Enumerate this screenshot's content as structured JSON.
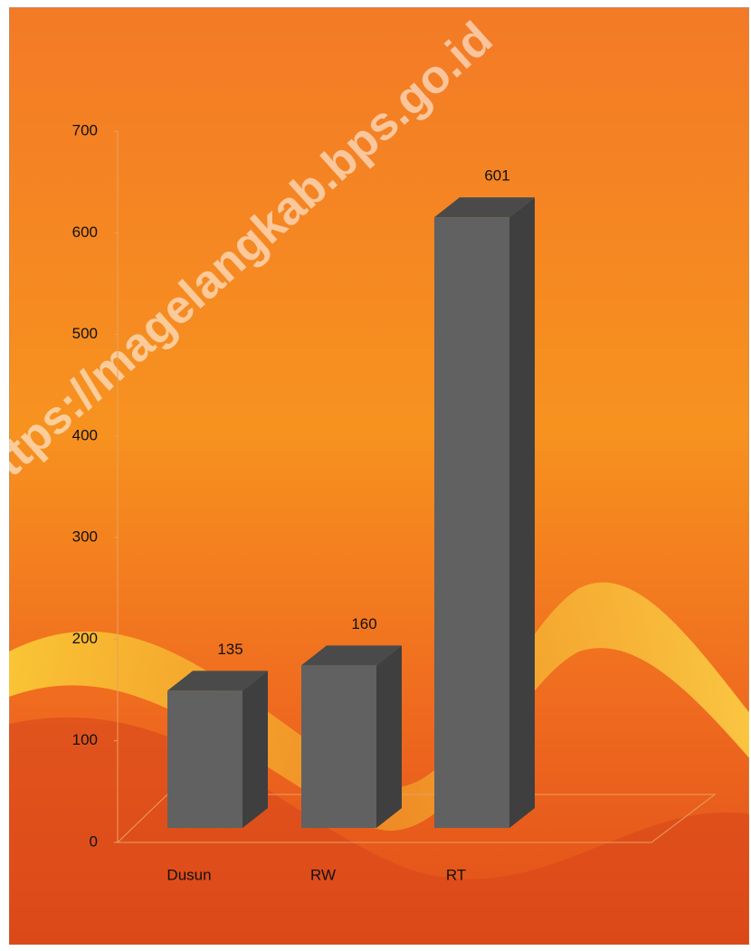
{
  "chart_data": {
    "type": "bar3d",
    "watermark": "https://magelangkab.bps.go.id",
    "categories": [
      "Dusun",
      "RW",
      "RT"
    ],
    "values": [
      135,
      160,
      601
    ],
    "color": "#616161",
    "ylim": [
      0,
      700
    ],
    "yticks": [
      0,
      100,
      200,
      300,
      400,
      500,
      600,
      700
    ]
  }
}
